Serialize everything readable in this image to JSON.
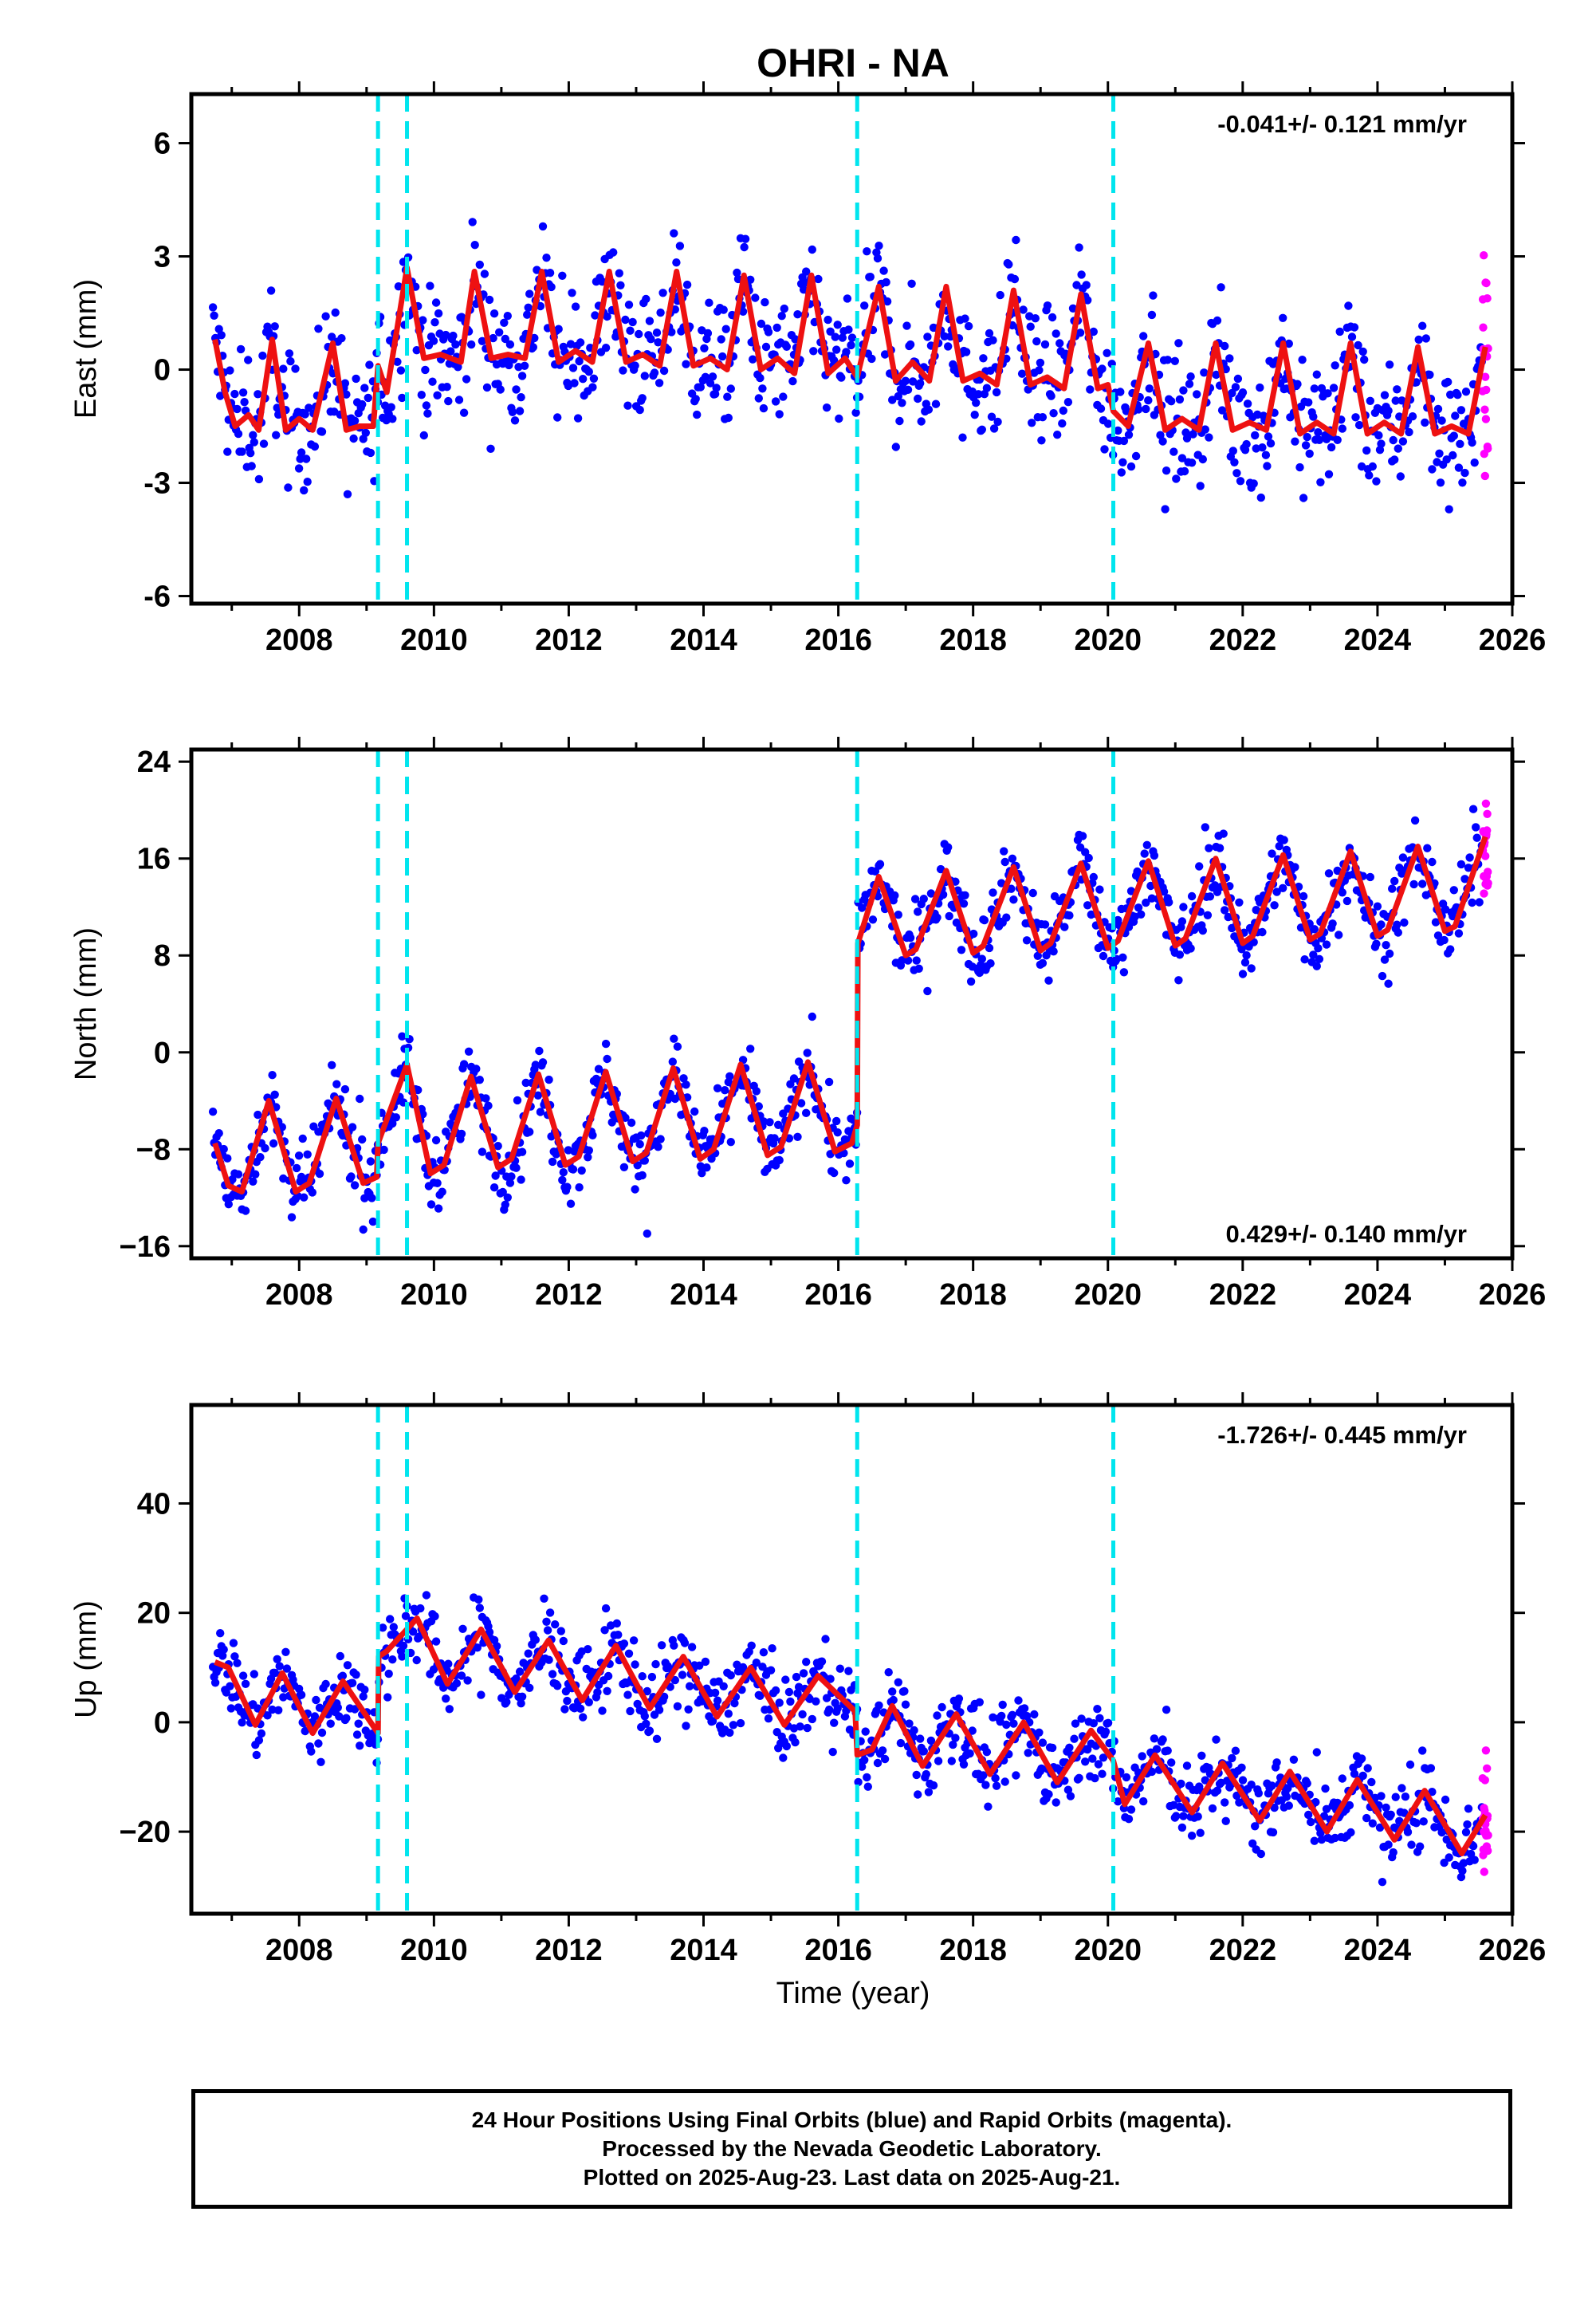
{
  "chart_data": {
    "type": "scatter",
    "title": "OHRI - NA",
    "xlabel": "Time (year)",
    "x_range": [
      2006.4,
      2026.0
    ],
    "x_ticks": [
      2008,
      2010,
      2012,
      2014,
      2016,
      2018,
      2020,
      2022,
      2024,
      2026
    ],
    "event_lines_x": [
      2009.17,
      2009.6,
      2016.28,
      2020.08
    ],
    "colors": {
      "final_orbits": "#0000ff",
      "rapid_orbits": "#ff00ff",
      "model": "#ee1111",
      "events": "#00e5ee"
    },
    "legend": "none",
    "panels": [
      {
        "ylabel": "East (mm)",
        "rate_text": "-0.041+/- 0.121 mm/yr",
        "rate_position": "top-right",
        "ylim": [
          -6.2,
          7.3
        ],
        "y_ticks": [
          -6,
          -3,
          0,
          3,
          6
        ],
        "y_tick_labels": [
          "-6",
          "-3",
          "0",
          "3",
          "6"
        ],
        "model_points": [
          [
            2006.75,
            0.8
          ],
          [
            2006.9,
            -0.6
          ],
          [
            2007.05,
            -1.5
          ],
          [
            2007.25,
            -1.2
          ],
          [
            2007.4,
            -1.6
          ],
          [
            2007.6,
            0.8
          ],
          [
            2007.8,
            -1.6
          ],
          [
            2008.0,
            -1.3
          ],
          [
            2008.2,
            -1.6
          ],
          [
            2008.5,
            0.7
          ],
          [
            2008.7,
            -1.6
          ],
          [
            2008.9,
            -1.5
          ],
          [
            2009.1,
            -1.5
          ],
          [
            2009.17,
            0.1
          ],
          [
            2009.3,
            -0.6
          ],
          [
            2009.6,
            2.7
          ],
          [
            2009.85,
            0.3
          ],
          [
            2010.1,
            0.4
          ],
          [
            2010.4,
            0.2
          ],
          [
            2010.6,
            2.6
          ],
          [
            2010.85,
            0.3
          ],
          [
            2011.1,
            0.4
          ],
          [
            2011.35,
            0.3
          ],
          [
            2011.6,
            2.6
          ],
          [
            2011.85,
            0.2
          ],
          [
            2012.1,
            0.5
          ],
          [
            2012.35,
            0.2
          ],
          [
            2012.6,
            2.6
          ],
          [
            2012.85,
            0.2
          ],
          [
            2013.1,
            0.4
          ],
          [
            2013.35,
            0.1
          ],
          [
            2013.6,
            2.6
          ],
          [
            2013.85,
            0.1
          ],
          [
            2014.1,
            0.3
          ],
          [
            2014.35,
            0.0
          ],
          [
            2014.6,
            2.5
          ],
          [
            2014.85,
            0.0
          ],
          [
            2015.1,
            0.3
          ],
          [
            2015.35,
            -0.1
          ],
          [
            2015.6,
            2.5
          ],
          [
            2015.85,
            -0.1
          ],
          [
            2016.1,
            0.3
          ],
          [
            2016.28,
            -0.2
          ],
          [
            2016.6,
            2.2
          ],
          [
            2016.85,
            -0.3
          ],
          [
            2017.1,
            0.2
          ],
          [
            2017.35,
            -0.3
          ],
          [
            2017.6,
            2.2
          ],
          [
            2017.85,
            -0.3
          ],
          [
            2018.1,
            -0.1
          ],
          [
            2018.35,
            -0.4
          ],
          [
            2018.6,
            2.1
          ],
          [
            2018.85,
            -0.4
          ],
          [
            2019.1,
            -0.2
          ],
          [
            2019.35,
            -0.5
          ],
          [
            2019.6,
            2.0
          ],
          [
            2019.85,
            -0.5
          ],
          [
            2020.0,
            -0.4
          ],
          [
            2020.08,
            -1.1
          ],
          [
            2020.3,
            -1.5
          ],
          [
            2020.6,
            0.7
          ],
          [
            2020.85,
            -1.6
          ],
          [
            2021.1,
            -1.3
          ],
          [
            2021.35,
            -1.6
          ],
          [
            2021.6,
            0.7
          ],
          [
            2021.85,
            -1.6
          ],
          [
            2022.1,
            -1.4
          ],
          [
            2022.35,
            -1.6
          ],
          [
            2022.6,
            0.7
          ],
          [
            2022.85,
            -1.7
          ],
          [
            2023.1,
            -1.4
          ],
          [
            2023.35,
            -1.7
          ],
          [
            2023.6,
            0.7
          ],
          [
            2023.85,
            -1.7
          ],
          [
            2024.1,
            -1.4
          ],
          [
            2024.35,
            -1.7
          ],
          [
            2024.6,
            0.6
          ],
          [
            2024.85,
            -1.7
          ],
          [
            2025.1,
            -1.5
          ],
          [
            2025.35,
            -1.7
          ],
          [
            2025.6,
            0.6
          ]
        ]
      },
      {
        "ylabel": "North (mm)",
        "rate_text": "0.429+/- 0.140 mm/yr",
        "rate_position": "bottom-right",
        "ylim": [
          -17,
          25
        ],
        "y_ticks": [
          -16,
          -8,
          0,
          8,
          16,
          24
        ],
        "y_tick_labels": [
          "−16",
          "−8",
          "0",
          "8",
          "16",
          "24"
        ],
        "model_points": [
          [
            2006.75,
            -7.5
          ],
          [
            2006.95,
            -11.0
          ],
          [
            2007.15,
            -11.5
          ],
          [
            2007.55,
            -4.0
          ],
          [
            2007.95,
            -11.5
          ],
          [
            2008.15,
            -10.8
          ],
          [
            2008.55,
            -3.8
          ],
          [
            2008.95,
            -10.8
          ],
          [
            2009.15,
            -10.3
          ],
          [
            2009.17,
            -7.5
          ],
          [
            2009.6,
            -1.0
          ],
          [
            2009.95,
            -10.0
          ],
          [
            2010.15,
            -9.3
          ],
          [
            2010.55,
            -2.0
          ],
          [
            2010.95,
            -9.5
          ],
          [
            2011.15,
            -8.8
          ],
          [
            2011.55,
            -1.8
          ],
          [
            2011.95,
            -9.3
          ],
          [
            2012.15,
            -8.6
          ],
          [
            2012.55,
            -1.6
          ],
          [
            2012.95,
            -9.0
          ],
          [
            2013.15,
            -8.3
          ],
          [
            2013.55,
            -1.3
          ],
          [
            2013.95,
            -8.8
          ],
          [
            2014.15,
            -8.0
          ],
          [
            2014.55,
            -1.0
          ],
          [
            2014.95,
            -8.5
          ],
          [
            2015.15,
            -7.8
          ],
          [
            2015.55,
            -0.8
          ],
          [
            2015.95,
            -8.2
          ],
          [
            2016.2,
            -7.5
          ],
          [
            2016.28,
            -6.0
          ],
          [
            2016.29,
            9.0
          ],
          [
            2016.6,
            14.5
          ],
          [
            2017.0,
            8.0
          ],
          [
            2017.15,
            8.5
          ],
          [
            2017.6,
            15.0
          ],
          [
            2018.0,
            8.2
          ],
          [
            2018.15,
            8.8
          ],
          [
            2018.6,
            15.3
          ],
          [
            2019.0,
            8.4
          ],
          [
            2019.15,
            9.0
          ],
          [
            2019.6,
            15.6
          ],
          [
            2020.0,
            8.6
          ],
          [
            2020.15,
            9.2
          ],
          [
            2020.6,
            15.8
          ],
          [
            2021.0,
            8.8
          ],
          [
            2021.15,
            9.4
          ],
          [
            2021.6,
            16.0
          ],
          [
            2022.0,
            9.0
          ],
          [
            2022.15,
            9.6
          ],
          [
            2022.6,
            16.3
          ],
          [
            2023.0,
            9.3
          ],
          [
            2023.15,
            9.8
          ],
          [
            2023.6,
            16.6
          ],
          [
            2024.0,
            9.6
          ],
          [
            2024.15,
            10.1
          ],
          [
            2024.6,
            17.0
          ],
          [
            2025.0,
            10.0
          ],
          [
            2025.15,
            10.4
          ],
          [
            2025.6,
            17.8
          ]
        ]
      },
      {
        "ylabel": "Up (mm)",
        "rate_text": "-1.726+/- 0.445 mm/yr",
        "rate_position": "top-right",
        "ylim": [
          -35,
          58
        ],
        "y_ticks": [
          -20,
          0,
          20,
          40
        ],
        "y_tick_labels": [
          "−20",
          "0",
          "20",
          "40"
        ],
        "model_points": [
          [
            2006.75,
            11.0
          ],
          [
            2006.95,
            10.0
          ],
          [
            2007.35,
            -0.5
          ],
          [
            2007.75,
            9.0
          ],
          [
            2008.2,
            -2.0
          ],
          [
            2008.65,
            7.5
          ],
          [
            2009.17,
            -2.0
          ],
          [
            2009.18,
            12.0
          ],
          [
            2009.3,
            13.0
          ],
          [
            2009.75,
            19.0
          ],
          [
            2010.2,
            7.0
          ],
          [
            2010.7,
            17.0
          ],
          [
            2011.2,
            5.5
          ],
          [
            2011.7,
            15.0
          ],
          [
            2012.2,
            4.0
          ],
          [
            2012.7,
            14.0
          ],
          [
            2013.2,
            2.5
          ],
          [
            2013.7,
            12.0
          ],
          [
            2014.2,
            1.0
          ],
          [
            2014.7,
            10.0
          ],
          [
            2015.2,
            -0.5
          ],
          [
            2015.7,
            8.5
          ],
          [
            2016.25,
            2.0
          ],
          [
            2016.28,
            -6.0
          ],
          [
            2016.5,
            -5.0
          ],
          [
            2016.8,
            3.0
          ],
          [
            2017.25,
            -8.0
          ],
          [
            2017.75,
            1.5
          ],
          [
            2018.25,
            -9.5
          ],
          [
            2018.75,
            0.0
          ],
          [
            2019.25,
            -11.0
          ],
          [
            2019.75,
            -1.5
          ],
          [
            2020.08,
            -7.0
          ],
          [
            2020.25,
            -15.0
          ],
          [
            2020.7,
            -6.0
          ],
          [
            2021.25,
            -16.5
          ],
          [
            2021.7,
            -7.5
          ],
          [
            2022.25,
            -18.0
          ],
          [
            2022.7,
            -9.0
          ],
          [
            2023.25,
            -20.0
          ],
          [
            2023.7,
            -10.5
          ],
          [
            2024.25,
            -21.5
          ],
          [
            2024.7,
            -12.5
          ],
          [
            2025.25,
            -24.0
          ],
          [
            2025.6,
            -17.0
          ]
        ]
      }
    ]
  },
  "footer": {
    "line1": "24 Hour Positions Using Final Orbits (blue) and Rapid Orbits (magenta).",
    "line2": "Processed by the Nevada Geodetic Laboratory.",
    "line3": "Plotted on 2025-Aug-23. Last data on 2025-Aug-21."
  }
}
